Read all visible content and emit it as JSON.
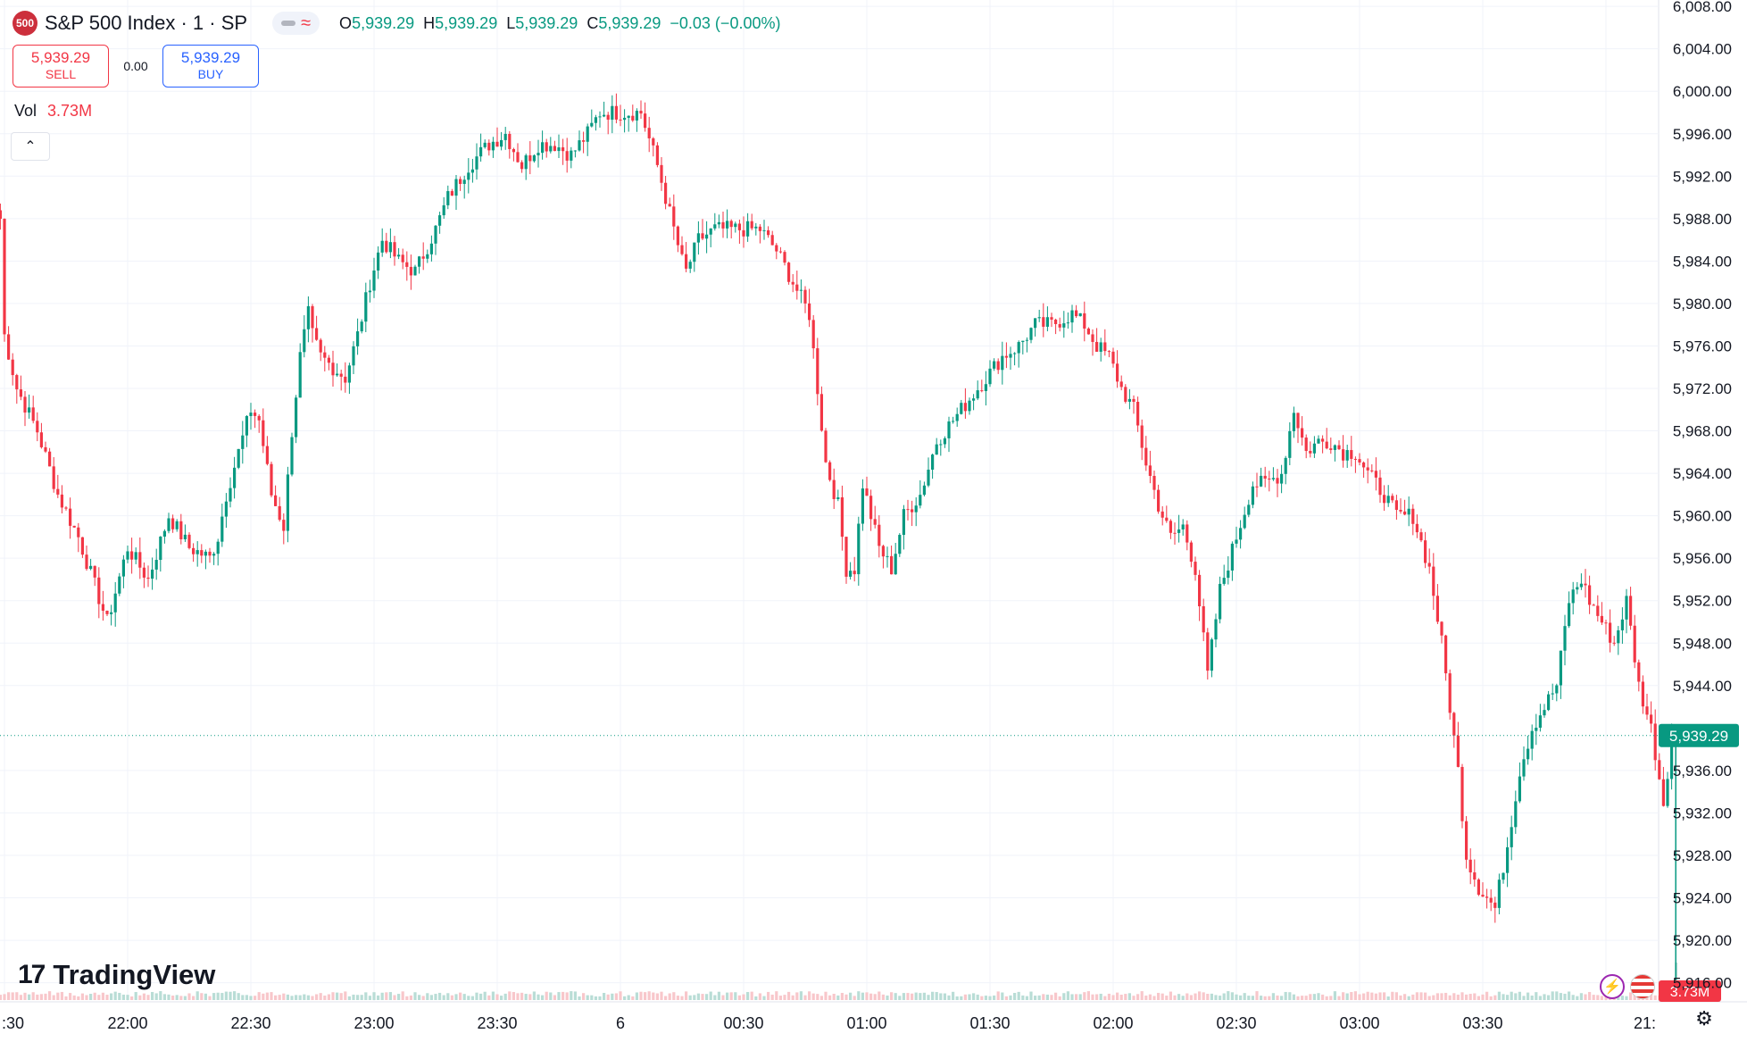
{
  "header": {
    "symbol_badge": "500",
    "title": "S&P 500 Index · 1 · SP",
    "ohlc": [
      {
        "key": "O",
        "value": "5,939.29"
      },
      {
        "key": "H",
        "value": "5,939.29"
      },
      {
        "key": "L",
        "value": "5,939.29"
      },
      {
        "key": "C",
        "value": "5,939.29"
      }
    ],
    "change": "−0.03 (−0.00%)"
  },
  "trade": {
    "sell_price": "5,939.29",
    "sell_label": "SELL",
    "spread": "0.00",
    "buy_price": "5,939.29",
    "buy_label": "BUY"
  },
  "volume": {
    "label": "Vol",
    "value": "3.73M"
  },
  "branding": {
    "logo_text": "TradingView",
    "logo_mark": "17"
  },
  "colors": {
    "up": "#089981",
    "down": "#f23645",
    "grid": "#f0f3fa",
    "price_line": "#089981",
    "volume_up": "#b9ddd6",
    "volume_down": "#f8c7cb"
  },
  "icons": {
    "collapse": "chevron-up-icon",
    "flash": "lightning-icon",
    "flag": "us-flag-icon",
    "settings": "gear-icon"
  },
  "chart_data": {
    "type": "candlestick",
    "interval": "1 minute",
    "y_axis": {
      "ticks": [
        5916,
        5920,
        5924,
        5928,
        5932,
        5936,
        5944,
        5948,
        5952,
        5956,
        5960,
        5964,
        5968,
        5972,
        5976,
        5980,
        5984,
        5988,
        5992,
        5996,
        6000,
        6004,
        6008
      ],
      "tick_labels": [
        "5,916.00",
        "5,920.00",
        "5,924.00",
        "5,928.00",
        "5,932.00",
        "5,936.00",
        "5,944.00",
        "5,948.00",
        "5,952.00",
        "5,956.00",
        "5,960.00",
        "5,964.00",
        "5,968.00",
        "5,972.00",
        "5,976.00",
        "5,980.00",
        "5,984.00",
        "5,988.00",
        "5,992.00",
        "5,996.00",
        "6,000.00",
        "6,004.00",
        "6,008.00"
      ],
      "range": [
        5914.2,
        6008.6
      ]
    },
    "x_axis": {
      "tick_labels": [
        ":30",
        "22:00",
        "22:30",
        "23:00",
        "23:30",
        "6",
        "00:30",
        "01:00",
        "01:30",
        "02:00",
        "02:30",
        "03:00",
        "03:30",
        "21:"
      ],
      "tick_minutes": [
        -30,
        0,
        30,
        60,
        90,
        120,
        150,
        180,
        210,
        240,
        270,
        300,
        330,
        360
      ]
    },
    "last_price": 5939.29,
    "last_price_label": "5,939.29",
    "volume_label": "3.73M",
    "series_keypoints": [
      [
        -31,
        5988
      ],
      [
        -30,
        5977
      ],
      [
        -27,
        5972
      ],
      [
        -22,
        5968
      ],
      [
        -17,
        5962
      ],
      [
        -12,
        5958
      ],
      [
        -5,
        5950
      ],
      [
        0,
        5957
      ],
      [
        5,
        5954
      ],
      [
        10,
        5960
      ],
      [
        15,
        5957
      ],
      [
        20,
        5956
      ],
      [
        22,
        5958
      ],
      [
        24,
        5962
      ],
      [
        27,
        5966
      ],
      [
        30,
        5970
      ],
      [
        32,
        5969
      ],
      [
        35,
        5962
      ],
      [
        38,
        5959
      ],
      [
        40,
        5968
      ],
      [
        42,
        5975
      ],
      [
        44,
        5979
      ],
      [
        45,
        5977
      ],
      [
        47,
        5975
      ],
      [
        50,
        5974
      ],
      [
        53,
        5973
      ],
      [
        56,
        5977
      ],
      [
        59,
        5982
      ],
      [
        62,
        5986
      ],
      [
        66,
        5984
      ],
      [
        70,
        5983
      ],
      [
        75,
        5987
      ],
      [
        78,
        5990
      ],
      [
        83,
        5993
      ],
      [
        88,
        5995
      ],
      [
        92,
        5996
      ],
      [
        96,
        5993
      ],
      [
        100,
        5995
      ],
      [
        104,
        5995
      ],
      [
        108,
        5994
      ],
      [
        112,
        5996
      ],
      [
        115,
        5998
      ],
      [
        120,
        5998
      ],
      [
        125,
        5998
      ],
      [
        129,
        5993
      ],
      [
        133,
        5987
      ],
      [
        135,
        5984
      ],
      [
        136,
        5983
      ],
      [
        139,
        5986
      ],
      [
        143,
        5987
      ],
      [
        147,
        5987
      ],
      [
        151,
        5987
      ],
      [
        154,
        5987
      ],
      [
        158,
        5985
      ],
      [
        162,
        5982
      ],
      [
        166,
        5979
      ],
      [
        168,
        5972
      ],
      [
        170,
        5965
      ],
      [
        173,
        5961
      ],
      [
        175,
        5955
      ],
      [
        177,
        5955
      ],
      [
        179,
        5963
      ],
      [
        183,
        5957
      ],
      [
        186,
        5955
      ],
      [
        189,
        5960
      ],
      [
        193,
        5962
      ],
      [
        197,
        5967
      ],
      [
        201,
        5969
      ],
      [
        205,
        5971
      ],
      [
        209,
        5973
      ],
      [
        213,
        5975
      ],
      [
        217,
        5976
      ],
      [
        221,
        5978
      ],
      [
        225,
        5978
      ],
      [
        230,
        5979
      ],
      [
        233,
        5978
      ],
      [
        236,
        5976
      ],
      [
        239,
        5975
      ],
      [
        242,
        5972
      ],
      [
        245,
        5970
      ],
      [
        248,
        5965
      ],
      [
        251,
        5961
      ],
      [
        254,
        5958
      ],
      [
        257,
        5959
      ],
      [
        260,
        5955
      ],
      [
        263,
        5945
      ],
      [
        266,
        5953
      ],
      [
        270,
        5958
      ],
      [
        274,
        5963
      ],
      [
        277,
        5963
      ],
      [
        281,
        5964
      ],
      [
        284,
        5970
      ],
      [
        287,
        5966
      ],
      [
        290,
        5967
      ],
      [
        293,
        5967
      ],
      [
        296,
        5966
      ],
      [
        299,
        5966
      ],
      [
        302,
        5964
      ],
      [
        306,
        5962
      ],
      [
        309,
        5960
      ],
      [
        313,
        5960
      ],
      [
        317,
        5955
      ],
      [
        320,
        5948
      ],
      [
        322,
        5942
      ],
      [
        324,
        5936
      ],
      [
        326,
        5928
      ],
      [
        329,
        5925
      ],
      [
        333,
        5923
      ],
      [
        336,
        5929
      ],
      [
        339,
        5936
      ],
      [
        342,
        5940
      ],
      [
        345,
        5942
      ],
      [
        348,
        5944
      ],
      [
        351,
        5952
      ],
      [
        354,
        5954
      ],
      [
        356,
        5952
      ],
      [
        359,
        5950
      ],
      [
        362,
        5948
      ],
      [
        365,
        5952
      ],
      [
        368,
        5944
      ],
      [
        371,
        5940
      ],
      [
        374,
        5933
      ],
      [
        376,
        5939
      ]
    ]
  }
}
